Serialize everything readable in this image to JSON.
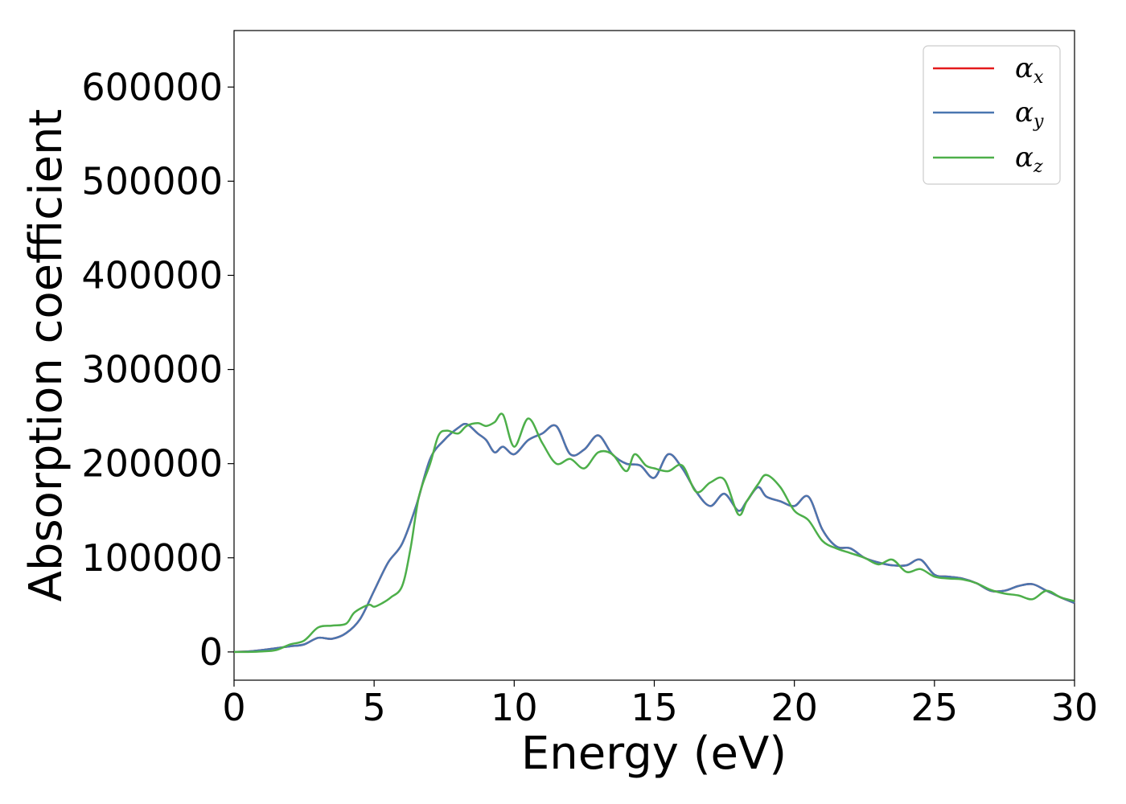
{
  "chart_data": {
    "type": "line",
    "title": "",
    "xlabel": "Energy (eV)",
    "ylabel": "Absorption coefficient",
    "xlim": [
      0,
      30
    ],
    "ylim": [
      -30000,
      660000
    ],
    "xticks": [
      0,
      5,
      10,
      15,
      20,
      25,
      30
    ],
    "yticks": [
      0,
      100000,
      200000,
      300000,
      400000,
      500000,
      600000
    ],
    "grid": false,
    "legend_position": "top-right",
    "colors": {
      "alpha_x": "#e41a1c",
      "alpha_y": "#4a76b0",
      "alpha_z": "#4daf4a"
    },
    "legend": [
      {
        "symbol": "α",
        "sub": "x"
      },
      {
        "symbol": "α",
        "sub": "y"
      },
      {
        "symbol": "α",
        "sub": "z"
      }
    ],
    "series": [
      {
        "key": "alpha_x",
        "x": [
          0,
          0.5,
          1,
          1.5,
          2,
          2.5,
          3,
          3.5,
          4,
          4.5,
          5,
          5.5,
          6,
          6.5,
          7,
          7.5,
          8,
          8.3,
          8.7,
          9,
          9.3,
          9.6,
          10,
          10.5,
          11,
          11.5,
          12,
          12.5,
          13,
          13.5,
          14,
          14.5,
          15,
          15.5,
          16,
          16.5,
          17,
          17.5,
          18,
          18.3,
          18.7,
          19,
          19.5,
          20,
          20.5,
          21,
          21.5,
          22,
          22.5,
          23,
          23.5,
          24,
          24.5,
          25,
          25.5,
          26,
          26.5,
          27,
          27.5,
          28,
          28.5,
          29,
          29.5,
          30
        ],
        "y": [
          0,
          500,
          2000,
          4000,
          6000,
          8000,
          15000,
          14000,
          20000,
          35000,
          65000,
          95000,
          115000,
          155000,
          205000,
          225000,
          238000,
          242000,
          232000,
          225000,
          212000,
          218000,
          210000,
          225000,
          232000,
          240000,
          210000,
          215000,
          230000,
          210000,
          200000,
          198000,
          185000,
          210000,
          195000,
          170000,
          155000,
          168000,
          150000,
          160000,
          175000,
          165000,
          160000,
          155000,
          165000,
          130000,
          112000,
          110000,
          100000,
          95000,
          92000,
          92000,
          98000,
          82000,
          80000,
          78000,
          73000,
          65000,
          65000,
          70000,
          72000,
          65000,
          58000,
          52000
        ]
      },
      {
        "key": "alpha_y",
        "x": [
          0,
          0.5,
          1,
          1.5,
          2,
          2.5,
          3,
          3.5,
          4,
          4.5,
          5,
          5.5,
          6,
          6.5,
          7,
          7.5,
          8,
          8.3,
          8.7,
          9,
          9.3,
          9.6,
          10,
          10.5,
          11,
          11.5,
          12,
          12.5,
          13,
          13.5,
          14,
          14.5,
          15,
          15.5,
          16,
          16.5,
          17,
          17.5,
          18,
          18.3,
          18.7,
          19,
          19.5,
          20,
          20.5,
          21,
          21.5,
          22,
          22.5,
          23,
          23.5,
          24,
          24.5,
          25,
          25.5,
          26,
          26.5,
          27,
          27.5,
          28,
          28.5,
          29,
          29.5,
          30
        ],
        "y": [
          0,
          500,
          2000,
          4000,
          6000,
          8000,
          15000,
          14000,
          20000,
          35000,
          65000,
          95000,
          115000,
          155000,
          205000,
          225000,
          238000,
          242000,
          232000,
          225000,
          212000,
          218000,
          210000,
          225000,
          232000,
          240000,
          210000,
          215000,
          230000,
          210000,
          200000,
          198000,
          185000,
          210000,
          195000,
          170000,
          155000,
          168000,
          150000,
          160000,
          175000,
          165000,
          160000,
          155000,
          165000,
          130000,
          112000,
          110000,
          100000,
          95000,
          92000,
          92000,
          98000,
          82000,
          80000,
          78000,
          73000,
          65000,
          65000,
          70000,
          72000,
          65000,
          58000,
          52000
        ]
      },
      {
        "key": "alpha_z",
        "x": [
          0,
          0.5,
          1,
          1.5,
          2,
          2.5,
          3,
          3.5,
          4,
          4.3,
          4.8,
          5,
          5.3,
          5.6,
          6,
          6.3,
          6.6,
          7,
          7.3,
          7.6,
          8,
          8.3,
          8.7,
          9,
          9.3,
          9.6,
          10,
          10.5,
          11,
          11.5,
          12,
          12.5,
          13,
          13.5,
          14,
          14.3,
          14.7,
          15,
          15.5,
          16,
          16.5,
          17,
          17.5,
          18,
          18.3,
          18.7,
          19,
          19.5,
          20,
          20.5,
          21,
          21.5,
          22,
          22.5,
          23,
          23.5,
          24,
          24.5,
          25,
          25.5,
          26,
          26.5,
          27,
          27.5,
          28,
          28.5,
          29,
          29.5,
          30
        ],
        "y": [
          0,
          0,
          500,
          2000,
          8000,
          12000,
          26000,
          28000,
          30000,
          42000,
          50000,
          48000,
          52000,
          58000,
          70000,
          110000,
          165000,
          200000,
          230000,
          235000,
          232000,
          240000,
          243000,
          240000,
          244000,
          252000,
          218000,
          248000,
          222000,
          200000,
          205000,
          195000,
          212000,
          210000,
          192000,
          210000,
          198000,
          195000,
          192000,
          198000,
          170000,
          180000,
          183000,
          146000,
          160000,
          178000,
          188000,
          175000,
          150000,
          140000,
          118000,
          110000,
          105000,
          100000,
          93000,
          98000,
          85000,
          88000,
          80000,
          78000,
          77000,
          73000,
          66000,
          62000,
          60000,
          56000,
          65000,
          58000,
          54000
        ]
      }
    ]
  }
}
